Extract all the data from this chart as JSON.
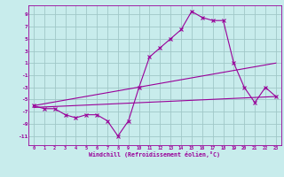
{
  "xlabel": "Windchill (Refroidissement éolien,°C)",
  "bg_color": "#c8ecec",
  "grid_color": "#a0c8c8",
  "line_color": "#990099",
  "x_ticks": [
    0,
    1,
    2,
    3,
    4,
    5,
    6,
    7,
    8,
    9,
    10,
    11,
    12,
    13,
    14,
    15,
    16,
    17,
    18,
    19,
    20,
    21,
    22,
    23
  ],
  "y_ticks": [
    -11,
    -9,
    -7,
    -5,
    -3,
    -1,
    1,
    3,
    5,
    7,
    9
  ],
  "ylim": [
    -12.5,
    10.5
  ],
  "xlim": [
    -0.5,
    23.5
  ],
  "series1_x": [
    0,
    1,
    2,
    3,
    4,
    5,
    6,
    7,
    8,
    9,
    10,
    11,
    12,
    13,
    14,
    15,
    16,
    17,
    18,
    19,
    20,
    21,
    22,
    23
  ],
  "series1_y": [
    -6.0,
    -6.5,
    -6.5,
    -7.5,
    -8.0,
    -7.5,
    -7.5,
    -8.5,
    -11.0,
    -8.5,
    -3.0,
    2.0,
    3.5,
    5.0,
    6.5,
    9.5,
    8.5,
    8.0,
    8.0,
    1.0,
    -3.0,
    -5.5,
    -3.0,
    -4.5
  ],
  "series2_x": [
    0,
    23
  ],
  "series2_y": [
    -6.0,
    1.0
  ],
  "series3_x": [
    0,
    23
  ],
  "series3_y": [
    -6.3,
    -4.5
  ]
}
